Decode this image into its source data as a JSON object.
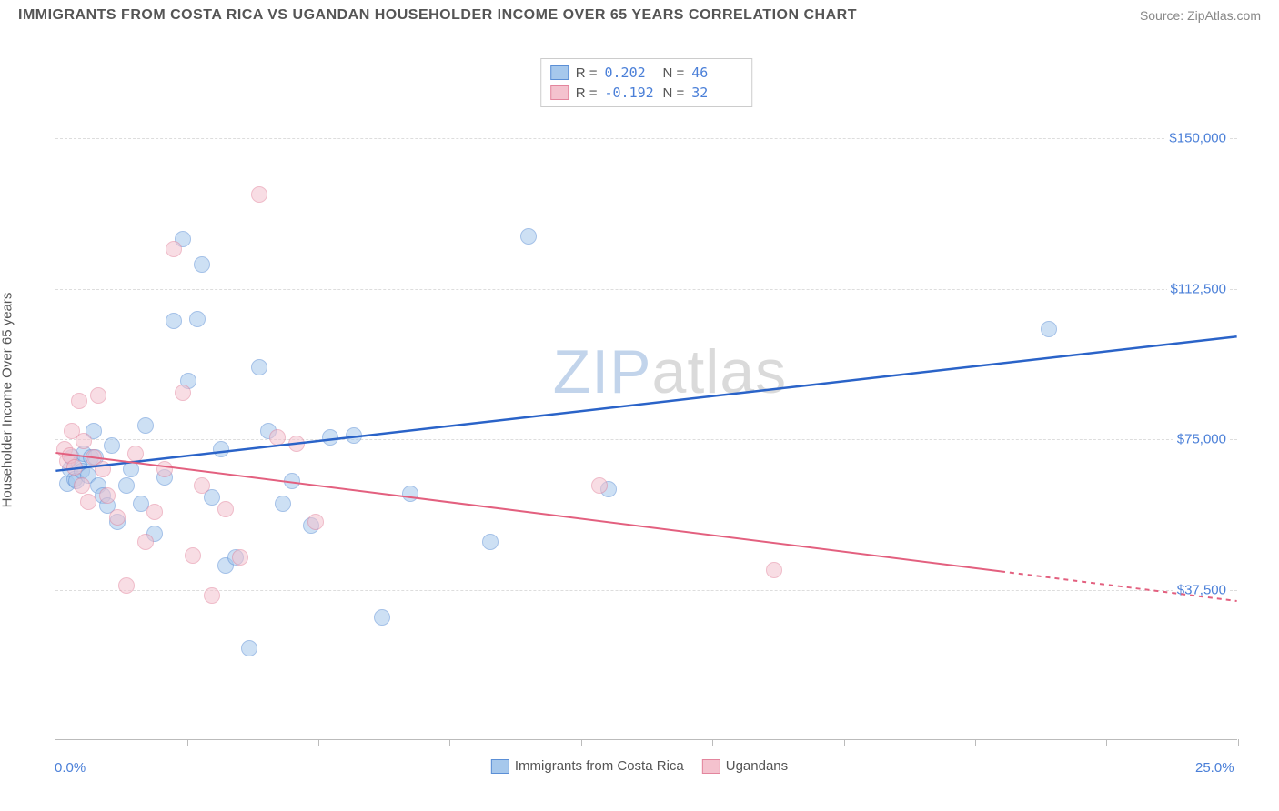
{
  "header": {
    "title": "IMMIGRANTS FROM COSTA RICA VS UGANDAN HOUSEHOLDER INCOME OVER 65 YEARS CORRELATION CHART",
    "source": "Source: ZipAtlas.com"
  },
  "watermark": {
    "part1": "ZIP",
    "part2": "atlas"
  },
  "chart": {
    "type": "scatter",
    "xlim": [
      0,
      25
    ],
    "ylim": [
      0,
      170000
    ],
    "x_ticks": [
      2.78,
      5.56,
      8.33,
      11.11,
      13.89,
      16.67,
      19.44,
      22.22,
      25.0
    ],
    "x_label_min": "0.0%",
    "x_label_max": "25.0%",
    "y_ticks": [
      {
        "v": 37500,
        "label": "$37,500"
      },
      {
        "v": 75000,
        "label": "$75,000"
      },
      {
        "v": 112500,
        "label": "$112,500"
      },
      {
        "v": 150000,
        "label": "$150,000"
      }
    ],
    "y_axis_title": "Householder Income Over 65 years",
    "grid_color": "#dddddd",
    "axis_color": "#bbbbbb",
    "background_color": "#ffffff",
    "label_color": "#4a7fd8",
    "point_radius": 9,
    "point_opacity": 0.55,
    "series": [
      {
        "name": "Immigrants from Costa Rica",
        "color_fill": "#a6c8ec",
        "color_stroke": "#5b8fd6",
        "trend_color": "#2a63c8",
        "trend_width": 2.5,
        "r": "0.202",
        "n": "46",
        "trend": {
          "y_at_xmin": 67000,
          "y_at_xmax": 100500,
          "solid_until_x": 25
        },
        "points": [
          [
            0.25,
            64000
          ],
          [
            0.3,
            67500
          ],
          [
            0.35,
            70500
          ],
          [
            0.4,
            65000
          ],
          [
            0.45,
            64500
          ],
          [
            0.5,
            69000
          ],
          [
            0.55,
            67000
          ],
          [
            0.6,
            71500
          ],
          [
            0.7,
            66000
          ],
          [
            0.75,
            70500
          ],
          [
            0.8,
            77000
          ],
          [
            0.85,
            70500
          ],
          [
            0.9,
            63500
          ],
          [
            1.0,
            61000
          ],
          [
            1.1,
            58500
          ],
          [
            1.2,
            73500
          ],
          [
            1.3,
            54500
          ],
          [
            1.5,
            63500
          ],
          [
            1.6,
            67500
          ],
          [
            1.8,
            59000
          ],
          [
            1.9,
            78500
          ],
          [
            2.1,
            51500
          ],
          [
            2.3,
            65500
          ],
          [
            2.5,
            104500
          ],
          [
            2.7,
            125000
          ],
          [
            2.8,
            89500
          ],
          [
            3.0,
            105000
          ],
          [
            3.1,
            118500
          ],
          [
            3.3,
            60500
          ],
          [
            3.5,
            72500
          ],
          [
            3.6,
            43500
          ],
          [
            3.8,
            45500
          ],
          [
            4.1,
            23000
          ],
          [
            4.3,
            93000
          ],
          [
            4.5,
            77000
          ],
          [
            4.8,
            59000
          ],
          [
            5.0,
            64500
          ],
          [
            5.4,
            53500
          ],
          [
            5.8,
            75500
          ],
          [
            6.3,
            76000
          ],
          [
            6.9,
            30500
          ],
          [
            7.5,
            61500
          ],
          [
            9.2,
            49500
          ],
          [
            10.0,
            125500
          ],
          [
            11.7,
            62500
          ],
          [
            21.0,
            102500
          ]
        ]
      },
      {
        "name": "Ugandans",
        "color_fill": "#f4c2ce",
        "color_stroke": "#e3859d",
        "trend_color": "#e3607f",
        "trend_width": 2,
        "r": "-0.192",
        "n": "32",
        "trend": {
          "y_at_xmin": 71500,
          "y_at_xmax": 34500,
          "solid_until_x": 20
        },
        "points": [
          [
            0.2,
            72500
          ],
          [
            0.25,
            69500
          ],
          [
            0.3,
            71000
          ],
          [
            0.35,
            77000
          ],
          [
            0.4,
            68000
          ],
          [
            0.5,
            84500
          ],
          [
            0.55,
            63500
          ],
          [
            0.6,
            74500
          ],
          [
            0.7,
            59500
          ],
          [
            0.8,
            70500
          ],
          [
            0.9,
            86000
          ],
          [
            1.0,
            67500
          ],
          [
            1.1,
            61000
          ],
          [
            1.3,
            55500
          ],
          [
            1.5,
            38500
          ],
          [
            1.7,
            71500
          ],
          [
            1.9,
            49500
          ],
          [
            2.1,
            57000
          ],
          [
            2.3,
            67500
          ],
          [
            2.5,
            122500
          ],
          [
            2.7,
            86500
          ],
          [
            2.9,
            46000
          ],
          [
            3.1,
            63500
          ],
          [
            3.3,
            36000
          ],
          [
            3.6,
            57500
          ],
          [
            3.9,
            45500
          ],
          [
            4.3,
            136000
          ],
          [
            4.7,
            75500
          ],
          [
            5.1,
            74000
          ],
          [
            5.5,
            54500
          ],
          [
            11.5,
            63500
          ],
          [
            15.2,
            42500
          ]
        ]
      }
    ],
    "legend_bottom": [
      {
        "label": "Immigrants from Costa Rica",
        "fill": "#a6c8ec",
        "stroke": "#5b8fd6"
      },
      {
        "label": "Ugandans",
        "fill": "#f4c2ce",
        "stroke": "#e3859d"
      }
    ]
  }
}
